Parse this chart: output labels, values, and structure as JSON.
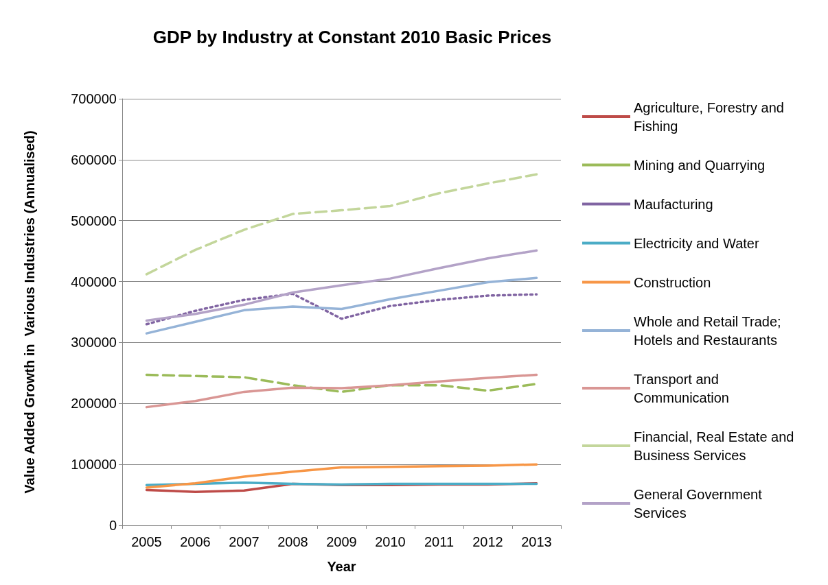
{
  "chart_data": {
    "type": "line",
    "title": "GDP by Industry at Constant 2010 Basic Prices",
    "xlabel": "Year",
    "ylabel": "Value Added Growth in  Various Industries (Annualised)",
    "categories": [
      "2005",
      "2006",
      "2007",
      "2008",
      "2009",
      "2010",
      "2011",
      "2012",
      "2013"
    ],
    "series": [
      {
        "name": "Agriculture, Forestry and Fishing",
        "color": "#be4b48",
        "line_style": "solid",
        "values": [
          58000,
          55000,
          57000,
          68000,
          66000,
          66000,
          67000,
          67000,
          69000
        ]
      },
      {
        "name": "Mining and Quarrying",
        "color": "#9bbb59",
        "line_style": "dashed",
        "values": [
          247000,
          245000,
          243000,
          230000,
          219000,
          230000,
          230000,
          221000,
          232000
        ]
      },
      {
        "name": "Maufacturing",
        "color": "#8064a2",
        "line_style": "dotted",
        "values": [
          330000,
          352000,
          370000,
          380000,
          339000,
          360000,
          370000,
          377000,
          379000
        ]
      },
      {
        "name": "Electricity and Water",
        "color": "#4bacc6",
        "line_style": "solid",
        "values": [
          66000,
          68000,
          70000,
          68000,
          67000,
          68000,
          68000,
          68000,
          68000
        ]
      },
      {
        "name": "Construction",
        "color": "#f79646",
        "line_style": "solid",
        "values": [
          62000,
          69000,
          80000,
          88000,
          95000,
          96000,
          97000,
          98000,
          100000
        ]
      },
      {
        "name": "Whole and Retail Trade; Hotels and Restaurants",
        "color": "#95b3d7",
        "line_style": "solid",
        "values": [
          315000,
          334000,
          353000,
          359000,
          355000,
          371000,
          385000,
          399000,
          406000
        ]
      },
      {
        "name": "Transport and Communication",
        "color": "#d99694",
        "line_style": "solid",
        "values": [
          194000,
          204000,
          219000,
          226000,
          225000,
          230000,
          236000,
          242000,
          247000
        ]
      },
      {
        "name": "Financial, Real Estate and Business Services",
        "color": "#c3d69b",
        "line_style": "dashed",
        "values": [
          412000,
          452000,
          485000,
          511000,
          517000,
          524000,
          545000,
          561000,
          576000
        ]
      },
      {
        "name": "General Government Services",
        "color": "#b3a2c7",
        "line_style": "solid",
        "values": [
          336000,
          347000,
          362000,
          382000,
          394000,
          405000,
          422000,
          438000,
          451000
        ]
      }
    ],
    "ylim": [
      0,
      700000
    ],
    "yticks": [
      0,
      100000,
      200000,
      300000,
      400000,
      500000,
      600000,
      700000
    ],
    "grid": "y",
    "legend": "right",
    "marker": "none"
  }
}
